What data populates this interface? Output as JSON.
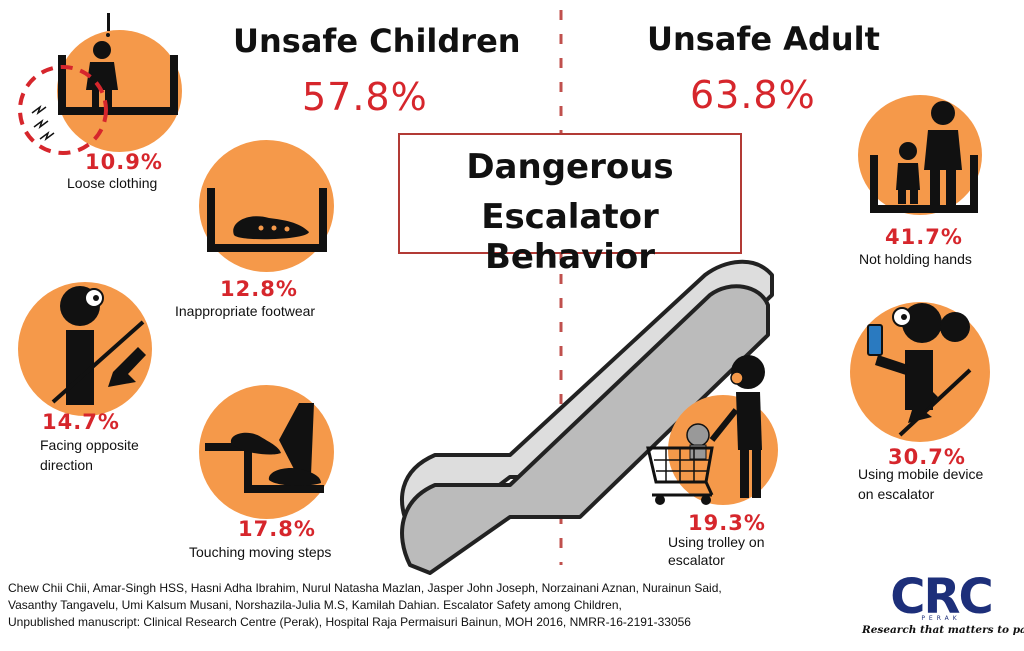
{
  "left_section": {
    "heading": "Unsafe Children",
    "percent": "57.8%"
  },
  "right_section": {
    "heading": "Unsafe Adult",
    "percent": "63.8%"
  },
  "title": {
    "line1": "Dangerous",
    "line2": "Escalator Behavior"
  },
  "children_items": [
    {
      "percent": "10.9%",
      "label": "Loose clothing"
    },
    {
      "percent": "12.8%",
      "label": "Inappropriate footwear"
    },
    {
      "percent": "14.7%",
      "label_line1": "Facing opposite",
      "label_line2": "direction"
    },
    {
      "percent": "17.8%",
      "label": "Touching moving steps"
    }
  ],
  "adult_items": [
    {
      "percent": "41.7%",
      "label": "Not holding hands"
    },
    {
      "percent": "30.7%",
      "label_line1": "Using mobile device",
      "label_line2": "on escalator"
    },
    {
      "percent": "19.3%",
      "label_line1": "Using trolley on",
      "label_line2": "escalator"
    }
  ],
  "citation": {
    "line1": "Chew Chii Chii, Amar-Singh HSS, Hasni Adha Ibrahim, Nurul Natasha Mazlan, Jasper John Joseph, Norzainani Aznan, Nurainun Said,",
    "line2": "Vasanthy Tangavelu, Umi Kalsum Musani, Norshazila-Julia M.S, Kamilah Dahian. Escalator Safety among Children,",
    "line3": "Unpublished manuscript: Clinical Research Centre (Perak), Hospital Raja Permaisuri Bainun, MOH 2016, NMRR-16-2191-33056"
  },
  "logo": {
    "text": "CRC",
    "sub_brand": "PERAK",
    "tagline": "Research that matters to patients"
  },
  "colors": {
    "accent_red": "#d6262c",
    "circle_orange": "#f5994a",
    "logo_blue": "#1d2f7a",
    "title_border": "#b23a35"
  }
}
